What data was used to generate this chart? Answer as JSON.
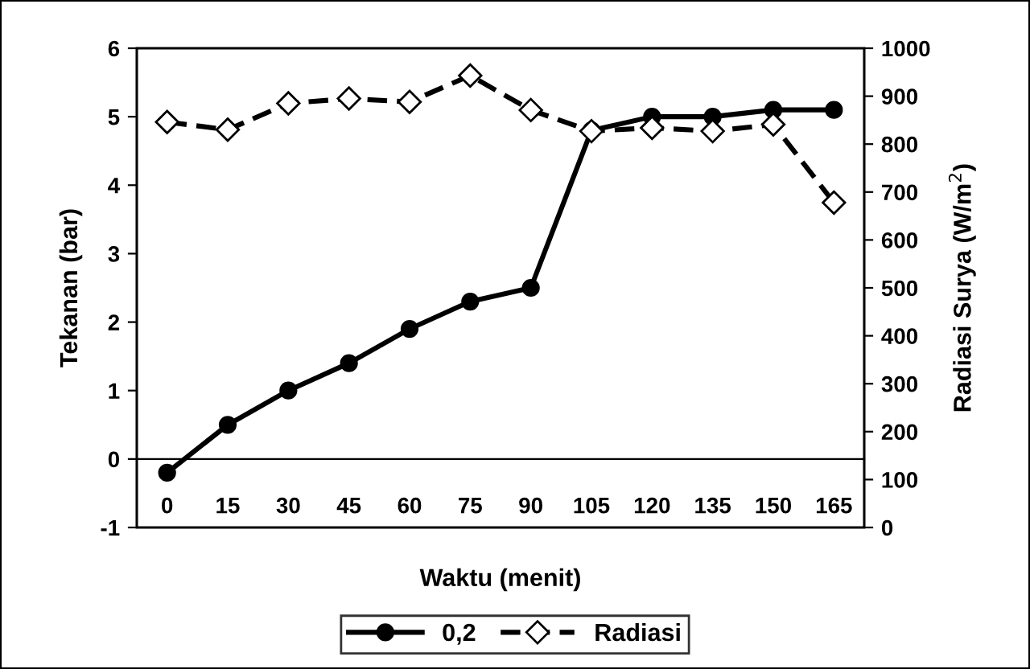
{
  "chart_data": {
    "type": "line",
    "xlabel": "Waktu (menit)",
    "ylabel": "Tekanan (bar)",
    "y2label": "Radiasi Surya (W/m$^{2}$)",
    "categories": [
      "0",
      "15",
      "30",
      "45",
      "60",
      "75",
      "90",
      "105",
      "120",
      "135",
      "150",
      "165"
    ],
    "series": [
      {
        "name": "0,2",
        "color": "#000000",
        "marker": "circle",
        "line_style": "solid",
        "values": [
          -0.2,
          0.5,
          1.0,
          1.4,
          1.9,
          2.3,
          2.5,
          4.8,
          5.0,
          5.0,
          5.1,
          5.1
        ]
      },
      {
        "name": "Radiasi",
        "color": "#000000",
        "marker": "diamond",
        "line_style": "dashed",
        "axis": "y2",
        "values": [
          846,
          830,
          885,
          895,
          888,
          943,
          871,
          827,
          834,
          827,
          841,
          678
        ]
      }
    ],
    "ylim": [
      -1,
      6
    ],
    "yticks": [
      -1,
      0,
      1,
      2,
      3,
      4,
      5,
      6
    ],
    "y2lim": [
      0,
      1000
    ],
    "y2ticks": [
      0,
      100,
      200,
      300,
      400,
      500,
      600,
      700,
      800,
      900,
      1000
    ],
    "legend": "bottom"
  }
}
